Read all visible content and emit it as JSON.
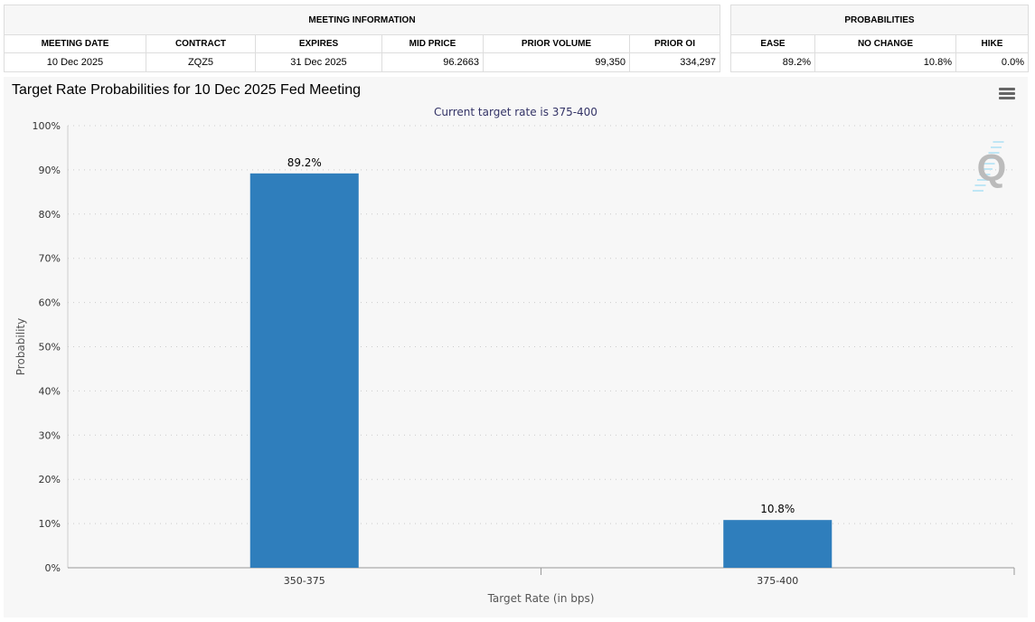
{
  "meeting_info": {
    "title": "MEETING INFORMATION",
    "headers": [
      "MEETING DATE",
      "CONTRACT",
      "EXPIRES",
      "MID PRICE",
      "PRIOR VOLUME",
      "PRIOR OI"
    ],
    "row": [
      "10 Dec 2025",
      "ZQZ5",
      "31 Dec 2025",
      "96.2663",
      "99,350",
      "334,297"
    ]
  },
  "probabilities": {
    "title": "PROBABILITIES",
    "headers": [
      "EASE",
      "NO CHANGE",
      "HIKE"
    ],
    "row": [
      "89.2%",
      "10.8%",
      "0.0%"
    ]
  },
  "chart": {
    "menu_icon": "hamburger-menu-icon",
    "watermark": "Q"
  },
  "chart_data": {
    "type": "bar",
    "title": "Target Rate Probabilities for 10 Dec 2025 Fed Meeting",
    "subtitle": "Current target rate is 375-400",
    "categories": [
      "350-375",
      "375-400"
    ],
    "values": [
      89.2,
      10.8
    ],
    "data_labels": [
      "89.2%",
      "10.8%"
    ],
    "xlabel": "Target Rate (in bps)",
    "ylabel": "Probability",
    "ylim": [
      0,
      100
    ],
    "yticks": [
      "0%",
      "10%",
      "20%",
      "30%",
      "40%",
      "50%",
      "60%",
      "70%",
      "80%",
      "90%",
      "100%"
    ],
    "grid": true,
    "bar_color": "#2f7ebc"
  }
}
